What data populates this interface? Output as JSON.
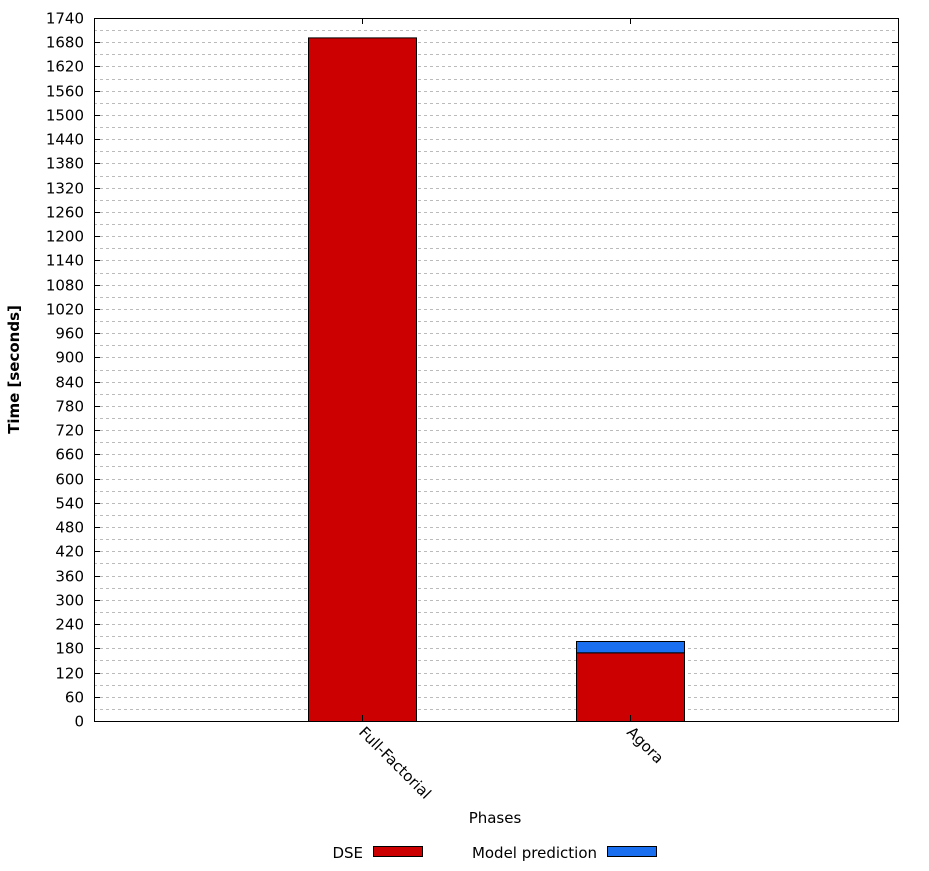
{
  "chart_data": {
    "type": "bar",
    "stacked": true,
    "title": "",
    "xlabel": "Phases",
    "ylabel": "Time [seconds]",
    "ylim": [
      0,
      1740
    ],
    "ytick_step": 60,
    "grid": true,
    "legend_position": "bottom",
    "categories": [
      "Full-Factorial",
      "Agora"
    ],
    "series": [
      {
        "name": "DSE",
        "color": "#cc0000",
        "values": [
          1692,
          170
        ]
      },
      {
        "name": "Model prediction",
        "color": "#1a6ef0",
        "values": [
          0,
          28
        ]
      }
    ]
  }
}
